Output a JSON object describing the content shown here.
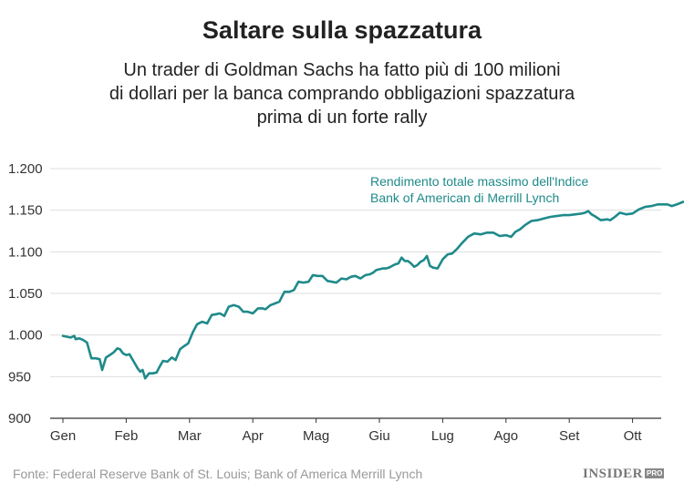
{
  "header": {
    "title": "Saltare sulla spazzatura",
    "subtitle_lines": [
      "Un trader di Goldman Sachs ha fatto più di 100 milioni",
      "di dollari per la banca comprando obbligazioni spazzatura",
      "prima di un forte rally"
    ]
  },
  "footer": {
    "source": "Fonte: Federal Reserve Bank of St. Louis; Bank of America Merrill Lynch",
    "logo_text": "INSIDER",
    "logo_badge": "PRO"
  },
  "colors": {
    "line": "#1f8a8a",
    "annotation": "#1f8a8a",
    "gridline": "#dddddd",
    "baseline": "#333333"
  },
  "chart_data": {
    "type": "line",
    "title": "Saltare sulla spazzatura",
    "ylim": [
      900,
      1200
    ],
    "yticks": [
      900,
      950,
      1000,
      1050,
      1100,
      1150,
      1200
    ],
    "ytick_labels": [
      "900",
      "950",
      "1.000",
      "1.050",
      "1.100",
      "1.150",
      "1.200"
    ],
    "xlim": [
      0,
      9.85
    ],
    "xticks": [
      0,
      1,
      2,
      3,
      4,
      5,
      6,
      7,
      8,
      9
    ],
    "xtick_labels": [
      "Gen",
      "Feb",
      "Mar",
      "Apr",
      "Mag",
      "Giu",
      "Lug",
      "Ago",
      "Set",
      "Ott"
    ],
    "grid": true,
    "annotation_lines": [
      "Rendimento totale massimo dell'Indice",
      "Bank of American di Merrill Lynch"
    ],
    "series": [
      {
        "x": [
          0,
          0.06,
          0.12,
          0.18,
          0.2,
          0.26,
          0.32,
          0.38,
          0.45,
          0.52,
          0.58,
          0.62,
          0.68,
          0.74,
          0.8,
          0.86,
          0.9,
          0.95,
          1.0,
          1.05,
          1.12,
          1.18,
          1.22,
          1.26,
          1.3,
          1.36,
          1.42,
          1.48,
          1.52,
          1.58,
          1.65,
          1.72,
          1.78,
          1.85,
          1.9,
          1.98,
          2.05,
          2.12,
          2.2,
          2.28,
          2.35,
          2.42,
          2.48,
          2.55,
          2.62,
          2.7,
          2.78,
          2.85,
          2.92,
          3.0,
          3.08,
          3.15,
          3.2,
          3.28,
          3.35,
          3.42,
          3.5,
          3.58,
          3.65,
          3.72,
          3.8,
          3.88,
          3.95,
          4.02,
          4.1,
          4.18,
          4.25,
          4.32,
          4.4,
          4.48,
          4.55,
          4.62,
          4.7,
          4.78,
          4.85,
          4.9,
          4.95,
          5.0,
          5.05,
          5.1,
          5.15,
          5.2,
          5.25,
          5.3,
          5.35,
          5.4,
          5.45,
          5.5,
          5.55,
          5.6,
          5.65,
          5.7,
          5.75,
          5.8,
          5.85,
          5.92,
          6.0,
          6.08,
          6.15,
          6.22,
          6.3,
          6.4,
          6.5,
          6.6,
          6.7,
          6.8,
          6.9,
          7.0,
          7.08,
          7.15,
          7.22,
          7.3,
          7.4,
          7.5,
          7.6,
          7.7,
          7.8,
          7.9,
          8.0,
          8.1,
          8.2,
          8.25,
          8.3,
          8.35,
          8.4,
          8.5,
          8.6,
          8.65,
          8.72,
          8.8,
          8.9,
          9.0,
          9.1,
          9.2,
          9.3,
          9.4,
          9.5,
          9.55,
          9.62,
          9.7,
          9.8
        ],
        "values": [
          999,
          998,
          997,
          999,
          995,
          996,
          994,
          991,
          972,
          972,
          971,
          958,
          973,
          976,
          979,
          984,
          983,
          978,
          976,
          977,
          968,
          960,
          956,
          958,
          948,
          954,
          954,
          955,
          961,
          969,
          968,
          973,
          970,
          983,
          986,
          990,
          1003,
          1013,
          1016,
          1014,
          1024,
          1025,
          1026,
          1023,
          1034,
          1036,
          1034,
          1028,
          1028,
          1026,
          1032,
          1032,
          1031,
          1036,
          1038,
          1040,
          1052,
          1052,
          1054,
          1064,
          1063,
          1064,
          1072,
          1071,
          1071,
          1065,
          1064,
          1063,
          1068,
          1067,
          1070,
          1071,
          1068,
          1072,
          1073,
          1075,
          1078,
          1079,
          1080,
          1080,
          1081,
          1083,
          1085,
          1086,
          1093,
          1089,
          1089,
          1086,
          1082,
          1084,
          1088,
          1090,
          1095,
          1083,
          1081,
          1080,
          1091,
          1097,
          1098,
          1103,
          1110,
          1118,
          1122,
          1121,
          1123,
          1123,
          1119,
          1120,
          1118,
          1124,
          1127,
          1132,
          1137,
          1138,
          1140,
          1142,
          1143,
          1144,
          1144,
          1145,
          1146,
          1147,
          1149,
          1145,
          1143,
          1138,
          1139,
          1138,
          1142,
          1147,
          1145,
          1146,
          1151,
          1154,
          1155,
          1157,
          1157,
          1157,
          1155,
          1157,
          1160
        ]
      }
    ]
  }
}
